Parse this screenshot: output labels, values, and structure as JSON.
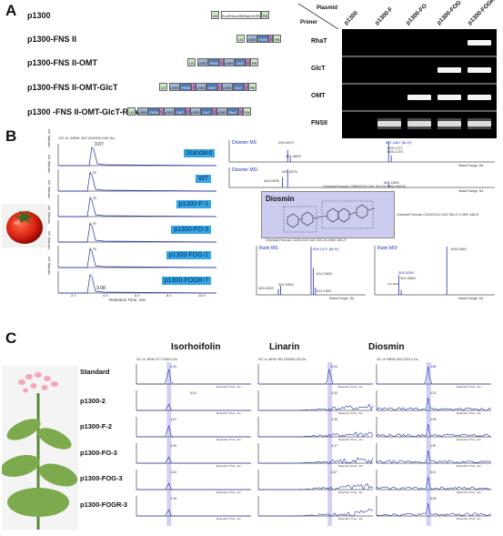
{
  "panelA": {
    "letter": "A",
    "constructs": [
      {
        "label": "p1300",
        "parts": [
          "LB",
          "EcoR/Acc65I/BamHI/Eil",
          "RB"
        ]
      },
      {
        "label": "p1300-FNS II",
        "parts": [
          "LB",
          "p35S",
          "FNSII",
          "T",
          "RB"
        ]
      },
      {
        "label": "p1300-FNS II-OMT",
        "parts": [
          "LB",
          "p35S",
          "FNSII",
          "T",
          "p35S",
          "OMT",
          "T",
          "RB"
        ]
      },
      {
        "label": "p1300-FNS II-OMT-GlcT",
        "parts": [
          "LB",
          "p35S",
          "FNSII",
          "T",
          "p35S",
          "OMT",
          "T",
          "p35S",
          "GlcT",
          "T",
          "RB"
        ]
      },
      {
        "label": "p1300 -FNS II-OMT-GlcT-RhaT",
        "parts": [
          "LB",
          "p35S",
          "FNSII",
          "T",
          "p35S",
          "OMT",
          "T",
          "p35S",
          "GlcT",
          "T",
          "p35S",
          "RhaT",
          "T",
          "RB"
        ]
      }
    ],
    "gel": {
      "corner_plasmid": "Plasmid",
      "corner_primer": "Primer",
      "lanes": [
        "p1300",
        "p1300-F",
        "p1300-FO",
        "p1300-FOG",
        "p1300-FOGR"
      ],
      "rows": [
        "RhaT",
        "GlcT",
        "OMT",
        "FNSII"
      ]
    }
  },
  "panelB": {
    "letter": "B",
    "xic_title": "XIC of -MRM: 607.200/299.100 Da",
    "peak_labels": [
      "3.07",
      "3.08"
    ],
    "rt_values": [
      "2.75",
      "2.78",
      "2.79",
      "2.75",
      "2.79"
    ],
    "samples": [
      "Standard",
      "WT",
      "p1300-F-1",
      "p1300-FO-3",
      "p1300-FOG-2",
      "p1300-FOGR-7"
    ],
    "x_axis_label": "Retention Time, min",
    "x_ticks": [
      "2.0",
      "4.0",
      "6.0",
      "8.0",
      "10.0"
    ],
    "y_label": "Intensity, cps",
    "ms_plots": [
      {
        "name": "Diosmin MS",
        "peaks": [
          "299.0570",
          "607.1667 [M-H]⁻",
          "301.0600",
          "605.1727",
          "608.1723"
        ]
      },
      {
        "name": "Diosmin MS²",
        "peaks": [
          "299.0575",
          "284.0335",
          "607.1590"
        ]
      },
      {
        "name": "Rutin MS",
        "peaks": [
          "609.1477 [M-H]⁻",
          "610.1563",
          "300.0283",
          "301.0354",
          "611.1522"
        ]
      },
      {
        "name": "Rutin MS²",
        "peaks": [
          "609.1583",
          "300.0290",
          "301.0360",
          "271.0262"
        ]
      }
    ],
    "mass_axis_label": "Mass/Charge, Da",
    "structure": {
      "name": "Diosmin",
      "formula_top": "Chemical Formula: C28H32O15   CAS: 520-26-3   MW: 608.54",
      "formula_right": "Chemical Formula: C21H20O11   CAS: 520-27-4   MW: 448.37",
      "formula_bottom": "Chemical Formula: C16H12O6   CAS: 520-34-3   MW: 300.27"
    }
  },
  "panelC": {
    "letter": "C",
    "columns": [
      "Isorhoifolin",
      "Linarin",
      "Diosmin"
    ],
    "xic_titles": [
      "XIC of -MRM: 577.2/269.0 Da",
      "XIC of -MRM: 591.200/283.100 Da",
      "XIC of +MRM: 609.2/301.0 Da"
    ],
    "rows": [
      "Standard",
      "p1300-2",
      "p1300-F-2",
      "p1300-FO-3",
      "p1300-FOG-3",
      "p1300-FOGR-3"
    ],
    "x_axis_label": "Retention Time, min",
    "peak_labels_iso": [
      "4.30",
      "5.61",
      "4.67",
      "3.99",
      "4.63",
      "4.35"
    ],
    "peak_labels_lin": [
      "8.64",
      "4.35",
      "4.35",
      "4.37",
      "6.67"
    ],
    "peak_labels_dio": [
      "4.86",
      "4.13",
      "4.53",
      "4.87",
      "5.01",
      "5.05"
    ]
  },
  "colors": {
    "accent": "#33a6e0",
    "trace": "#1f2fb8",
    "highlight": "#c9c9f2"
  }
}
